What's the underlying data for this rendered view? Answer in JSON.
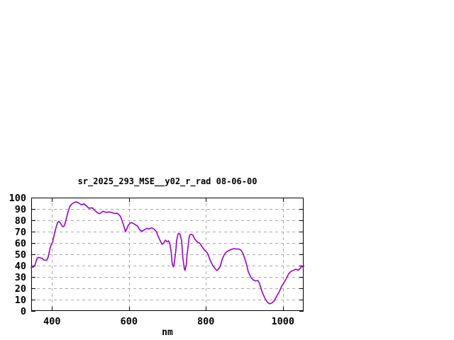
{
  "chart_data": {
    "type": "line",
    "title": "sr_2025_293_MSE__y02_r_rad 08-06-00",
    "xlabel": "nm",
    "ylabel": "",
    "x_range": [
      346,
      1054
    ],
    "y_range": [
      0,
      100
    ],
    "x_ticks": [
      400,
      600,
      800,
      1000
    ],
    "y_ticks": [
      0,
      10,
      20,
      30,
      40,
      50,
      60,
      70,
      80,
      90,
      100
    ],
    "grid": true,
    "legend_position": "none",
    "series": [
      {
        "name": "sr_2025_293_MSE__y02_r_rad",
        "points": [
          [
            346,
            38.5
          ],
          [
            350,
            38.6
          ],
          [
            353,
            39.2
          ],
          [
            356,
            40.5
          ],
          [
            358,
            43
          ],
          [
            361,
            46.3
          ],
          [
            364,
            47.3
          ],
          [
            368,
            47
          ],
          [
            371,
            46.8
          ],
          [
            375,
            46.3
          ],
          [
            378,
            45
          ],
          [
            382,
            44.8
          ],
          [
            386,
            44.9
          ],
          [
            389,
            46.3
          ],
          [
            392,
            50.4
          ],
          [
            395,
            55.6
          ],
          [
            398,
            58.5
          ],
          [
            402,
            61
          ],
          [
            405,
            66
          ],
          [
            408,
            70.2
          ],
          [
            411,
            74.4
          ],
          [
            414,
            77.5
          ],
          [
            417,
            79
          ],
          [
            420,
            78.5
          ],
          [
            423,
            76.9
          ],
          [
            427,
            74.6
          ],
          [
            430,
            74.4
          ],
          [
            433,
            76
          ],
          [
            436,
            79.6
          ],
          [
            439,
            83.7
          ],
          [
            442,
            87.9
          ],
          [
            445,
            91
          ],
          [
            448,
            93.1
          ],
          [
            451,
            94.2
          ],
          [
            457,
            95.6
          ],
          [
            463,
            96.3
          ],
          [
            470,
            95.2
          ],
          [
            474,
            94.2
          ],
          [
            478,
            93.8
          ],
          [
            483,
            94.6
          ],
          [
            490,
            92.5
          ],
          [
            496,
            90.6
          ],
          [
            501,
            90.9
          ],
          [
            505,
            91
          ],
          [
            509,
            89.5
          ],
          [
            514,
            87.9
          ],
          [
            519,
            86.5
          ],
          [
            524,
            85.8
          ],
          [
            528,
            86.9
          ],
          [
            533,
            88
          ],
          [
            538,
            87.3
          ],
          [
            542,
            87
          ],
          [
            548,
            87.4
          ],
          [
            554,
            87
          ],
          [
            558,
            86.5
          ],
          [
            563,
            86
          ],
          [
            570,
            86.2
          ],
          [
            578,
            83.5
          ],
          [
            583,
            79
          ],
          [
            588,
            73.5
          ],
          [
            591,
            70
          ],
          [
            594,
            72
          ],
          [
            598,
            75.5
          ],
          [
            603,
            77.5
          ],
          [
            606,
            78
          ],
          [
            610,
            77.5
          ],
          [
            616,
            76.2
          ],
          [
            622,
            75
          ],
          [
            628,
            71.7
          ],
          [
            634,
            70.2
          ],
          [
            640,
            71.7
          ],
          [
            646,
            72.9
          ],
          [
            652,
            72.3
          ],
          [
            659,
            73.3
          ],
          [
            665,
            72.3
          ],
          [
            671,
            70.2
          ],
          [
            677,
            65
          ],
          [
            683,
            60.8
          ],
          [
            686,
            58.8
          ],
          [
            690,
            59.8
          ],
          [
            695,
            62.5
          ],
          [
            699,
            61
          ],
          [
            703,
            61.9
          ],
          [
            706,
            59.8
          ],
          [
            710,
            51.5
          ],
          [
            712,
            43.1
          ],
          [
            715,
            39
          ],
          [
            717,
            40.2
          ],
          [
            719,
            45.2
          ],
          [
            722,
            53.5
          ],
          [
            724,
            61.9
          ],
          [
            727,
            67.1
          ],
          [
            729,
            68.5
          ],
          [
            732,
            68.1
          ],
          [
            734,
            66
          ],
          [
            737,
            61.9
          ],
          [
            740,
            47
          ],
          [
            744,
            37
          ],
          [
            746,
            35.8
          ],
          [
            749,
            41
          ],
          [
            751,
            49.4
          ],
          [
            754,
            57.7
          ],
          [
            756,
            64
          ],
          [
            758,
            67.1
          ],
          [
            761,
            67.7
          ],
          [
            766,
            67.1
          ],
          [
            769,
            65
          ],
          [
            772,
            63
          ],
          [
            778,
            60.8
          ],
          [
            784,
            59.8
          ],
          [
            790,
            56.7
          ],
          [
            797,
            53.5
          ],
          [
            803,
            51.5
          ],
          [
            806,
            49.4
          ],
          [
            812,
            44.2
          ],
          [
            818,
            40
          ],
          [
            825,
            36.9
          ],
          [
            828,
            35.8
          ],
          [
            831,
            36.3
          ],
          [
            837,
            39
          ],
          [
            843,
            46.3
          ],
          [
            849,
            50.4
          ],
          [
            855,
            52.5
          ],
          [
            861,
            53.5
          ],
          [
            868,
            54.6
          ],
          [
            874,
            55
          ],
          [
            880,
            54.6
          ],
          [
            886,
            54.6
          ],
          [
            892,
            53.5
          ],
          [
            898,
            49.4
          ],
          [
            904,
            43.1
          ],
          [
            907,
            39
          ],
          [
            910,
            34.8
          ],
          [
            914,
            31.7
          ],
          [
            917,
            29.6
          ],
          [
            923,
            27.5
          ],
          [
            929,
            26.5
          ],
          [
            935,
            26.9
          ],
          [
            938,
            25.4
          ],
          [
            941,
            22.3
          ],
          [
            947,
            16
          ],
          [
            954,
            10.8
          ],
          [
            960,
            7.7
          ],
          [
            966,
            6.3
          ],
          [
            972,
            7.1
          ],
          [
            978,
            9.2
          ],
          [
            984,
            12.9
          ],
          [
            991,
            17.1
          ],
          [
            997,
            21.9
          ],
          [
            1003,
            25
          ],
          [
            1009,
            28.5
          ],
          [
            1015,
            32.7
          ],
          [
            1021,
            34.8
          ],
          [
            1027,
            35.8
          ],
          [
            1034,
            36.9
          ],
          [
            1040,
            35.9
          ],
          [
            1043,
            36.9
          ],
          [
            1046,
            37.9
          ],
          [
            1049,
            40
          ],
          [
            1051,
            38.8
          ],
          [
            1053,
            38.3
          ],
          [
            1054,
            40.5
          ]
        ]
      }
    ]
  },
  "colors": {
    "line": "#9900cc",
    "grid": "#a8a8a8",
    "axis": "#000000",
    "text": "#000000",
    "background": "#ffffff"
  }
}
